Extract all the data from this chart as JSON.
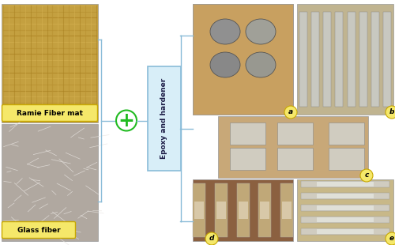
{
  "bg_color": "#f0f0f0",
  "left_label1": "Ramie Fiber mat",
  "left_label2": "Glass fiber",
  "center_label": "Epoxy and hardener",
  "plus_color": "#22bb22",
  "plus_bg": "#22bb22",
  "box_color_center": "#d8eef8",
  "box_border_center": "#8abcd8",
  "label_box_color": "#f5e86a",
  "label_box_border": "#c8a800",
  "line_color": "#8abcd8",
  "line_width": 1.0,
  "ramie_color1": "#c8a84b",
  "ramie_color2": "#b09030",
  "glass_color1": "#c8c0b8",
  "glass_color2": "#e0d8d0",
  "sample_a_bg": "#b8a060",
  "sample_b_bg": "#c0b490",
  "sample_c_bg": "#c8a878",
  "sample_d_bg": "#8b6040",
  "sample_e_bg": "#c8b888",
  "label_circle_color": "#f5e86a",
  "label_circle_border": "#c8a800"
}
